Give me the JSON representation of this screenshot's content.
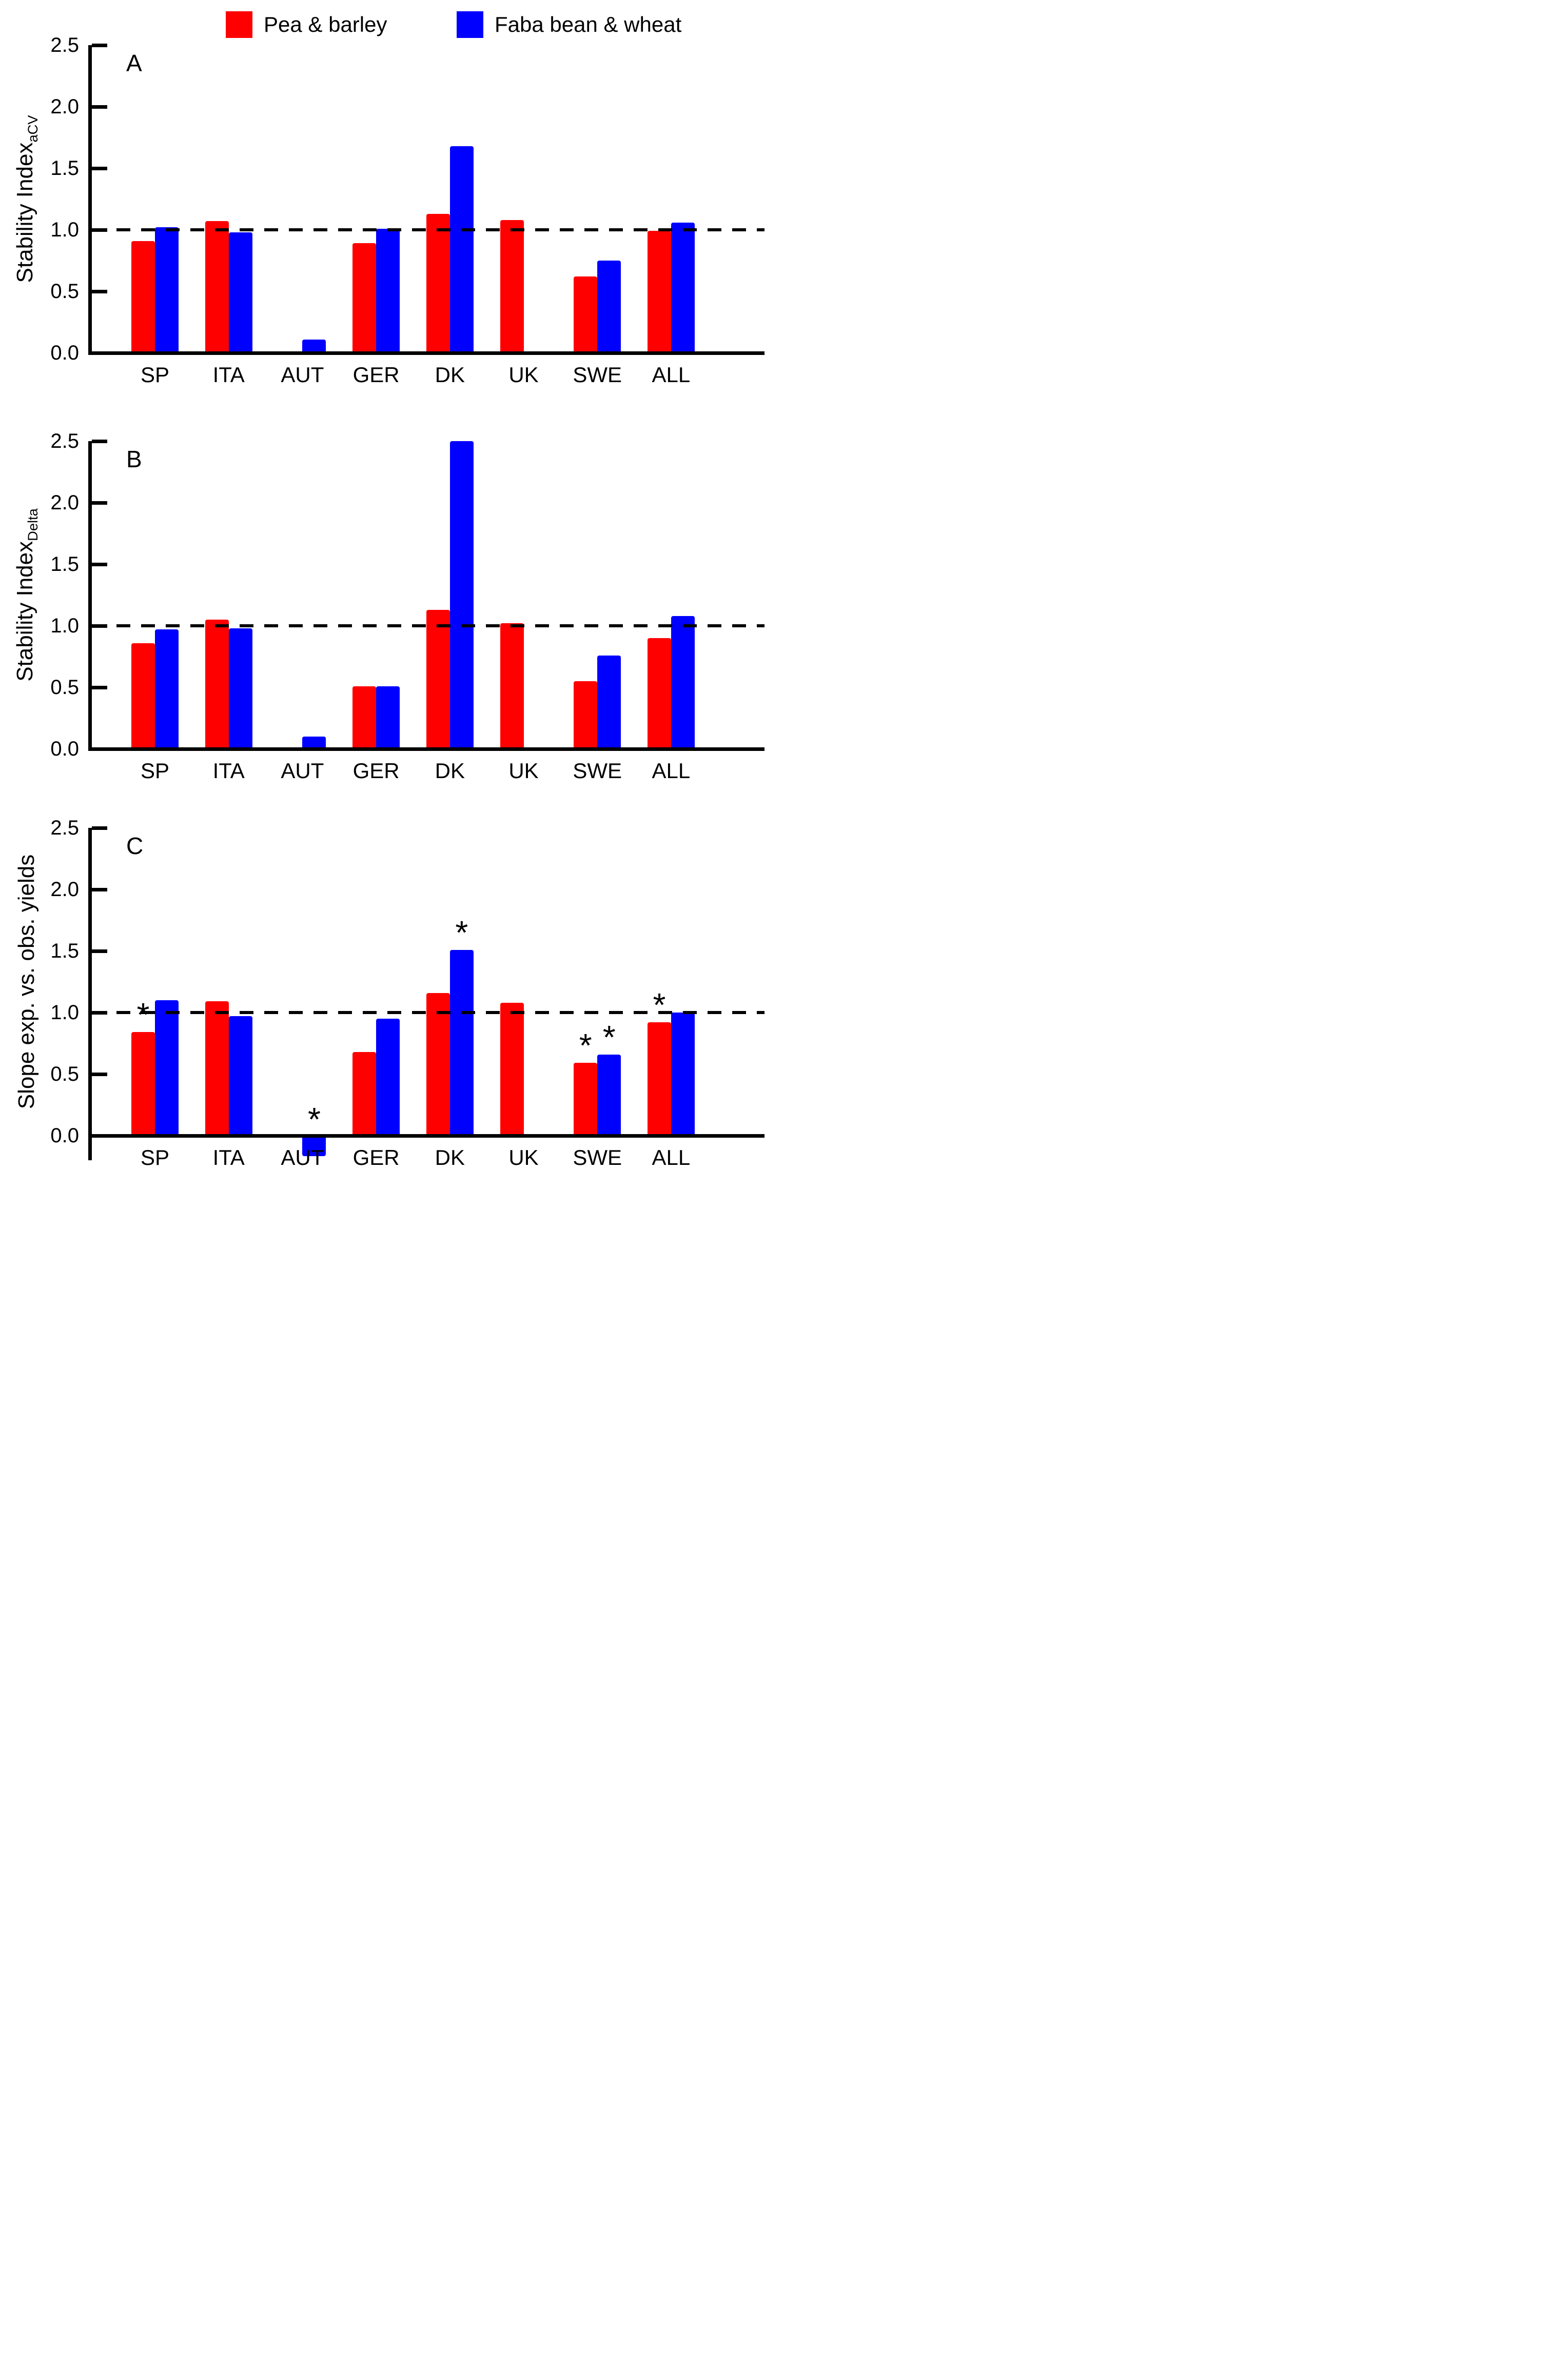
{
  "legend": [
    {
      "label": "Pea & barley",
      "color": "#FF0000"
    },
    {
      "label": "Faba bean & wheat",
      "color": "#0000FF"
    }
  ],
  "chart_data": [
    {
      "type": "bar",
      "panel_label": "A",
      "ylabel": "Stability Index",
      "ylabel_sub": "aCV",
      "ylim": [
        0,
        2.5
      ],
      "yticks": [
        "0.0",
        "0.5",
        "1.0",
        "1.5",
        "2.0",
        "2.5"
      ],
      "refline": 1.0,
      "grid": false,
      "legend_position": "top",
      "categories": [
        "SP",
        "ITA",
        "AUT",
        "GER",
        "DK",
        "UK",
        "SWE",
        "ALL"
      ],
      "series": [
        {
          "name": "Pea & barley",
          "color": "#FF0000",
          "values": [
            0.91,
            1.07,
            null,
            0.89,
            1.13,
            1.08,
            0.62,
            0.99
          ],
          "stars": [
            false,
            false,
            false,
            false,
            false,
            false,
            false,
            false
          ]
        },
        {
          "name": "Faba bean & wheat",
          "color": "#0000FF",
          "values": [
            1.02,
            0.98,
            0.11,
            1.01,
            1.68,
            null,
            0.75,
            1.06
          ],
          "stars": [
            false,
            false,
            false,
            false,
            false,
            false,
            false,
            false
          ]
        }
      ]
    },
    {
      "type": "bar",
      "panel_label": "B",
      "ylabel": "Stability Index",
      "ylabel_sub": "Delta",
      "ylim": [
        0,
        2.5
      ],
      "yticks": [
        "0.0",
        "0.5",
        "1.0",
        "1.5",
        "2.0",
        "2.5"
      ],
      "refline": 1.0,
      "grid": false,
      "categories": [
        "SP",
        "ITA",
        "AUT",
        "GER",
        "DK",
        "UK",
        "SWE",
        "ALL"
      ],
      "series": [
        {
          "name": "Pea & barley",
          "color": "#FF0000",
          "values": [
            0.86,
            1.05,
            null,
            0.51,
            1.13,
            1.02,
            0.55,
            0.9
          ],
          "stars": [
            false,
            false,
            false,
            false,
            false,
            false,
            false,
            false
          ]
        },
        {
          "name": "Faba bean & wheat",
          "color": "#0000FF",
          "values": [
            0.97,
            0.98,
            0.1,
            0.51,
            2.5,
            null,
            0.76,
            1.08
          ],
          "stars": [
            false,
            false,
            false,
            false,
            false,
            false,
            false,
            false
          ]
        }
      ]
    },
    {
      "type": "bar",
      "panel_label": "C",
      "ylabel": "Slope exp. vs. obs. yields",
      "ylabel_sub": "",
      "ylim": [
        -0.2,
        2.5
      ],
      "yticks": [
        "0.0",
        "0.5",
        "1.0",
        "1.5",
        "2.0",
        "2.5"
      ],
      "refline": 1.0,
      "grid": false,
      "categories": [
        "SP",
        "ITA",
        "AUT",
        "GER",
        "DK",
        "UK",
        "SWE",
        "ALL"
      ],
      "series": [
        {
          "name": "Pea & barley",
          "color": "#FF0000",
          "values": [
            0.84,
            1.09,
            null,
            0.68,
            1.16,
            1.08,
            0.59,
            0.92
          ],
          "stars": [
            true,
            false,
            false,
            false,
            false,
            false,
            true,
            true
          ]
        },
        {
          "name": "Faba bean & wheat",
          "color": "#0000FF",
          "values": [
            1.1,
            0.97,
            -0.15,
            0.95,
            1.51,
            null,
            0.66,
            1.0
          ],
          "stars": [
            false,
            false,
            true,
            false,
            true,
            false,
            true,
            false
          ]
        }
      ]
    }
  ]
}
